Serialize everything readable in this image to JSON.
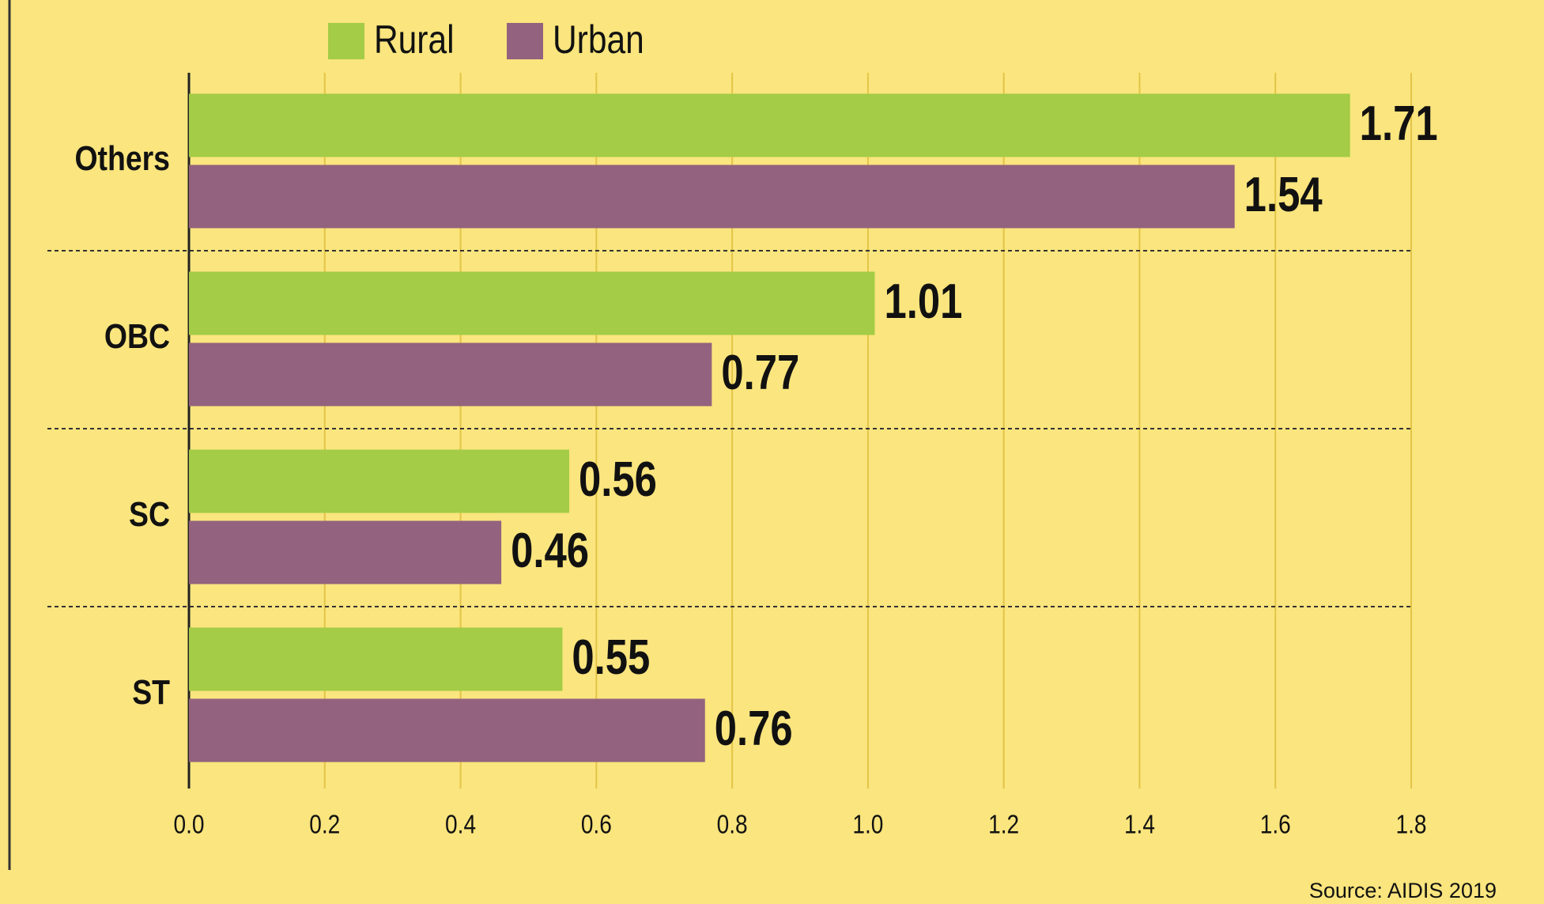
{
  "chart_data": {
    "type": "hbar",
    "categories": [
      "Others",
      "OBC",
      "SC",
      "ST"
    ],
    "series": [
      {
        "name": "Rural",
        "color": "#a4cc46",
        "values": [
          1.71,
          1.01,
          0.56,
          0.55
        ]
      },
      {
        "name": "Urban",
        "color": "#93627e",
        "values": [
          1.54,
          0.77,
          0.46,
          0.76
        ]
      }
    ],
    "xlim": [
      0,
      1.8
    ],
    "xticks": [
      {
        "value": 0,
        "label": "0.0"
      },
      0.2,
      0.4,
      0.6,
      0.8,
      {
        "value": 1,
        "label": "1.0"
      },
      1.2,
      1.4,
      1.6,
      1.8
    ],
    "grid": true,
    "legend": "top",
    "source": "Source: AIDIS 2019"
  }
}
